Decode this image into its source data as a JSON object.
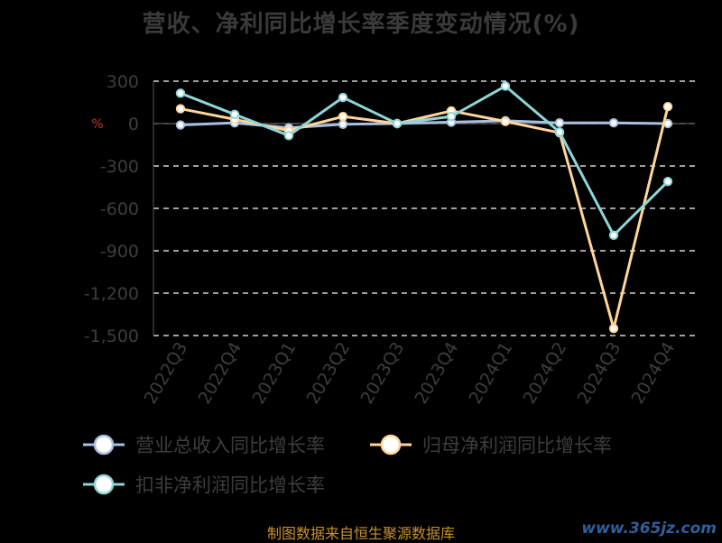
{
  "chart_data": {
    "type": "line",
    "title": "营收、净利同比增长率季度变动情况(%)",
    "categories": [
      "2022Q3",
      "2022Q4",
      "2023Q1",
      "2023Q2",
      "2023Q3",
      "2023Q4",
      "2024Q1",
      "2024Q2",
      "2024Q3",
      "2024Q4"
    ],
    "yticks": [
      "300",
      "0",
      "-300",
      "-600",
      "-900",
      "-1,200",
      "-1,500"
    ],
    "ylim": [
      -1500,
      300
    ],
    "grid": true,
    "legend_position": "bottom",
    "series": [
      {
        "name": "营业总收入同比增长率",
        "color": "#a9bfe0",
        "values": [
          -10,
          5,
          -30,
          -5,
          0,
          10,
          20,
          5,
          5,
          0
        ]
      },
      {
        "name": "归母净利润同比增长率",
        "color": "#ffd59a",
        "values": [
          105,
          30,
          -50,
          50,
          0,
          90,
          15,
          -65,
          -1450,
          120
        ]
      },
      {
        "name": "扣非净利润同比增长率",
        "color": "#8fd5d8",
        "values": [
          215,
          65,
          -85,
          185,
          0,
          50,
          265,
          -60,
          -790,
          -410
        ]
      }
    ],
    "ylabel_symbol": "%"
  },
  "footer": {
    "source": "制图数据来自恒生聚源数据库",
    "watermark": "www.365jz.com"
  }
}
